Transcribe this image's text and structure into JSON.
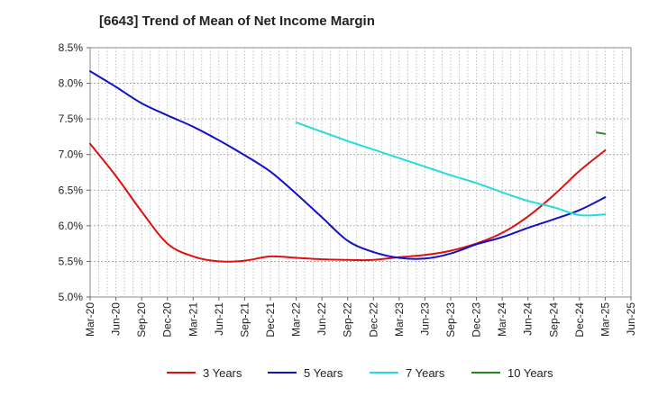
{
  "chart_data": {
    "type": "line",
    "title": "[6643]  Trend of Mean of Net Income Margin",
    "ylim": [
      0.05,
      0.085
    ],
    "yticks": [
      "5.0%",
      "5.5%",
      "6.0%",
      "6.5%",
      "7.0%",
      "7.5%",
      "8.0%",
      "8.5%"
    ],
    "ytick_values": [
      0.05,
      0.055,
      0.06,
      0.065,
      0.07,
      0.075,
      0.08,
      0.085
    ],
    "xticks": [
      "Mar-20",
      "Jun-20",
      "Sep-20",
      "Dec-20",
      "Mar-21",
      "Jun-21",
      "Sep-21",
      "Dec-21",
      "Mar-22",
      "Jun-22",
      "Sep-22",
      "Dec-22",
      "Mar-23",
      "Jun-23",
      "Sep-23",
      "Dec-23",
      "Mar-24",
      "Jun-24",
      "Sep-24",
      "Dec-24",
      "Mar-25",
      "Jun-25"
    ],
    "grid": true,
    "legend_position": "bottom",
    "series": [
      {
        "name": "3 Years",
        "color": "#dd1111",
        "x": [
          "Mar-20",
          "Jun-20",
          "Sep-20",
          "Dec-20",
          "Mar-21",
          "Jun-21",
          "Sep-21",
          "Dec-21",
          "Mar-22",
          "Jun-22",
          "Sep-22",
          "Dec-22",
          "Mar-23",
          "Jun-23",
          "Sep-23",
          "Dec-23",
          "Mar-24",
          "Jun-24",
          "Sep-24",
          "Dec-24",
          "Mar-25"
        ],
        "values": [
          0.0715,
          0.067,
          0.062,
          0.0575,
          0.0557,
          0.055,
          0.0551,
          0.0557,
          0.0555,
          0.0553,
          0.0552,
          0.0552,
          0.0556,
          0.0559,
          0.0565,
          0.0575,
          0.059,
          0.0613,
          0.0643,
          0.0677,
          0.0706
        ]
      },
      {
        "name": "5 Years",
        "color": "#1111cc",
        "x": [
          "Mar-20",
          "Jun-20",
          "Sep-20",
          "Dec-20",
          "Mar-21",
          "Jun-21",
          "Sep-21",
          "Dec-21",
          "Mar-22",
          "Jun-22",
          "Sep-22",
          "Dec-22",
          "Mar-23",
          "Jun-23",
          "Sep-23",
          "Dec-23",
          "Mar-24",
          "Jun-24",
          "Sep-24",
          "Dec-24",
          "Mar-25"
        ],
        "values": [
          0.0817,
          0.0795,
          0.0772,
          0.0755,
          0.0739,
          0.072,
          0.0699,
          0.0676,
          0.0645,
          0.0612,
          0.0579,
          0.0563,
          0.0555,
          0.0554,
          0.0561,
          0.0574,
          0.0584,
          0.0597,
          0.0609,
          0.0622,
          0.064
        ]
      },
      {
        "name": "7 Years",
        "color": "#22dddd",
        "x": [
          "Mar-22",
          "Jun-22",
          "Sep-22",
          "Dec-22",
          "Mar-23",
          "Jun-23",
          "Sep-23",
          "Dec-23",
          "Mar-24",
          "Jun-24",
          "Sep-24",
          "Dec-24",
          "Mar-25"
        ],
        "values": [
          0.0745,
          0.0732,
          0.0719,
          0.0707,
          0.0695,
          0.0683,
          0.0671,
          0.066,
          0.0647,
          0.0635,
          0.0626,
          0.0615,
          0.0616
        ]
      },
      {
        "name": "10 Years",
        "color": "#228822",
        "x": [
          "Feb-25",
          "Mar-25"
        ],
        "values": [
          0.0731,
          0.0729
        ]
      }
    ]
  }
}
